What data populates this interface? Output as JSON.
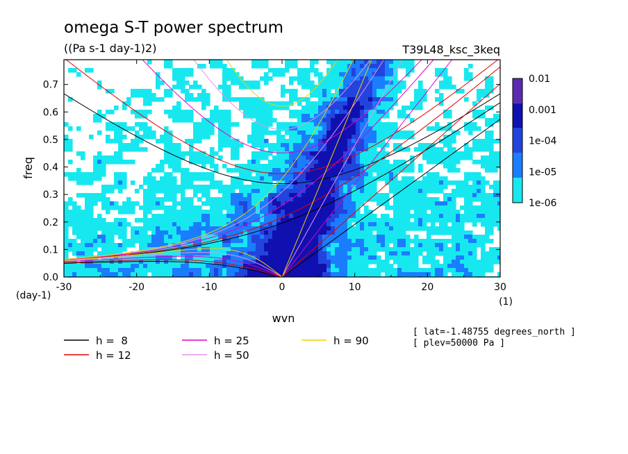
{
  "chart_data": {
    "type": "heatmap",
    "title": "omega S-T power spectrum",
    "subtitle": "((Pa s-1 day-1)2)",
    "run_label": "T39L48_ksc_3keq",
    "xlabel": "wvn",
    "ylabel": "freq",
    "x_unit": "(1)",
    "y_unit": "(day-1)",
    "xlim": [
      -30,
      30
    ],
    "ylim": [
      0,
      0.79
    ],
    "x_ticks": [
      -30,
      -20,
      -10,
      0,
      10,
      20,
      30
    ],
    "y_ticks": [
      0.0,
      0.1,
      0.2,
      0.3,
      0.4,
      0.5,
      0.6,
      0.7
    ],
    "x_tick_labels": [
      "-30",
      "-20",
      "-10",
      "0",
      "10",
      "20",
      "30"
    ],
    "y_tick_labels": [
      "0.0",
      "0.1",
      "0.2",
      "0.3",
      "0.4",
      "0.5",
      "0.6",
      "0.7"
    ],
    "colorbar": {
      "levels": [
        "0.01",
        "0.001",
        "1e-04",
        "1e-05",
        "1e-06"
      ],
      "colors": [
        "#5a2bb0",
        "#1010b0",
        "#2244dd",
        "#1a7dff",
        "#17e8f0"
      ]
    },
    "dispersion_curves": [
      {
        "label": "h =  8",
        "h": 8,
        "color": "#000000"
      },
      {
        "label": "h = 12",
        "h": 12,
        "color": "#e00000"
      },
      {
        "label": "h = 25",
        "h": 25,
        "color": "#e000c8"
      },
      {
        "label": "h = 50",
        "h": 50,
        "color": "#e890e8"
      },
      {
        "label": "h = 90",
        "h": 90,
        "color": "#f0d000"
      }
    ],
    "annotations": [
      "[ lat=-1.48755 degrees_north ]",
      "[ plev=50000 Pa ]"
    ],
    "grid": false,
    "legend_position": "bottom"
  }
}
